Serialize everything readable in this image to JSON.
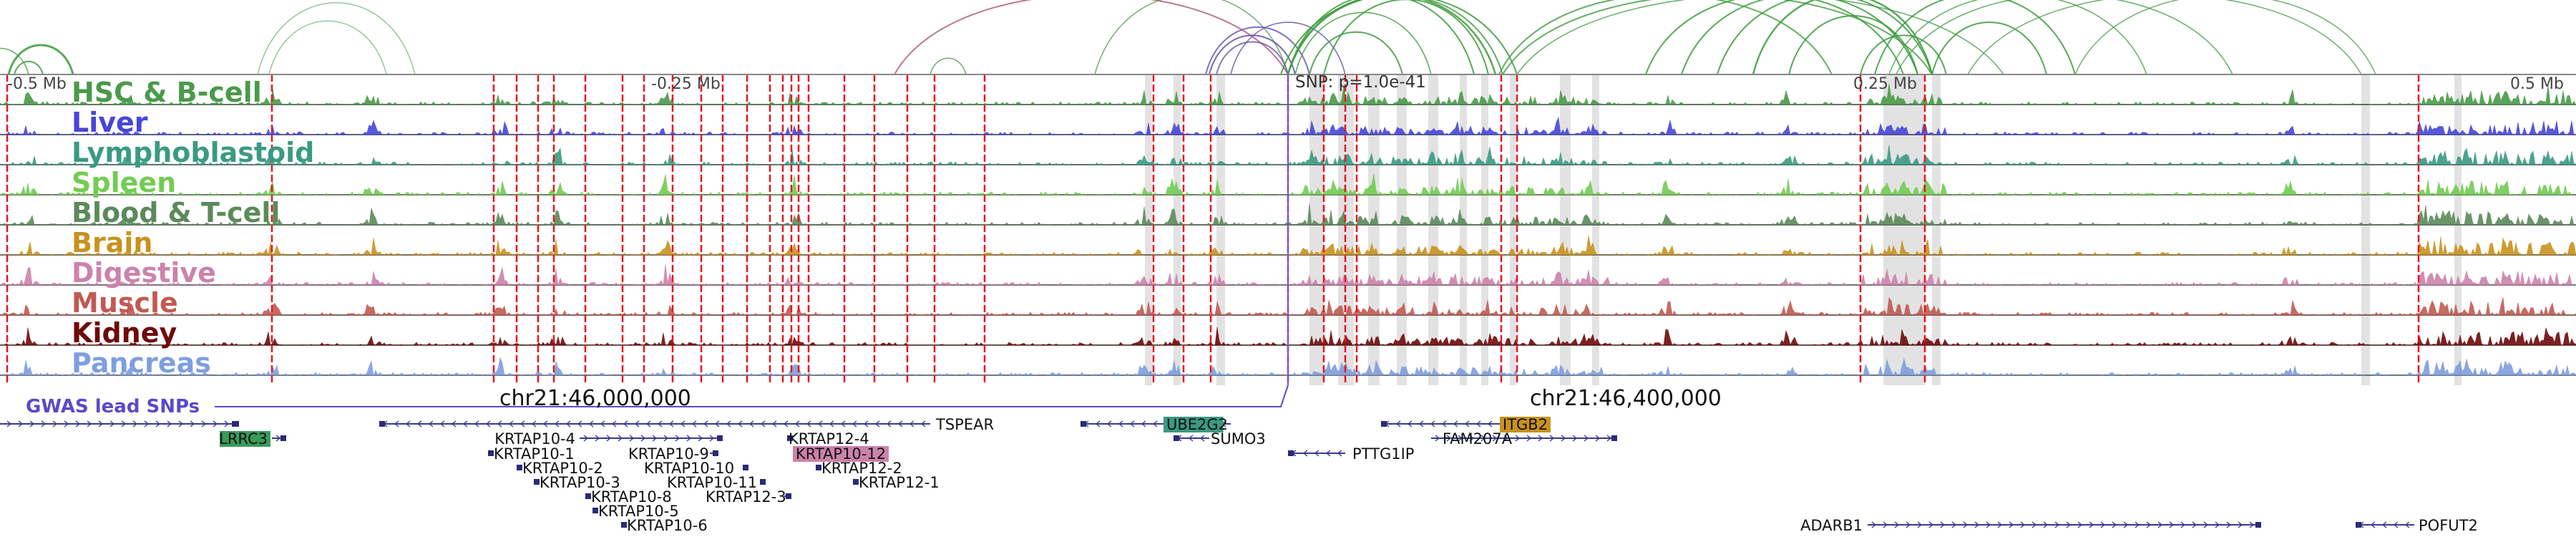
{
  "axis": {
    "ticks": [
      "-0.5 Mb",
      "-0.25 Mb",
      "0.25 Mb",
      "0.5 Mb"
    ],
    "snp_label": "SNP: p=1.0e-41"
  },
  "tracks": [
    {
      "name": "HSC & B-cell",
      "color": "#4a9a4a"
    },
    {
      "name": "Liver",
      "color": "#4646d8"
    },
    {
      "name": "Lymphoblastoid",
      "color": "#3a9a82"
    },
    {
      "name": "Spleen",
      "color": "#72cc52"
    },
    {
      "name": "Blood & T-cell",
      "color": "#5a8a5a"
    },
    {
      "name": "Brain",
      "color": "#c8921e"
    },
    {
      "name": "Digestive",
      "color": "#cc82aa"
    },
    {
      "name": "Muscle",
      "color": "#c05a52"
    },
    {
      "name": "Kidney",
      "color": "#6e0a0a"
    },
    {
      "name": "Pancreas",
      "color": "#7e9ede"
    }
  ],
  "gwas": {
    "label": "GWAS lead SNPs",
    "color": "#5a4ac8"
  },
  "coords": [
    "chr21:46,000,000",
    "chr21:46,400,000"
  ],
  "genes": [
    {
      "name": "TSPEAR",
      "highlight": false
    },
    {
      "name": "LRRC3",
      "highlight": true,
      "hl_color": "#3a9a5a"
    },
    {
      "name": "KRTAP10-4",
      "highlight": false
    },
    {
      "name": "KRTAP10-1",
      "highlight": false
    },
    {
      "name": "KRTAP10-2",
      "highlight": false
    },
    {
      "name": "KRTAP10-3",
      "highlight": false
    },
    {
      "name": "KRTAP10-8",
      "highlight": false
    },
    {
      "name": "KRTAP10-5",
      "highlight": false
    },
    {
      "name": "KRTAP10-6",
      "highlight": false
    },
    {
      "name": "KRTAP10-9",
      "highlight": false
    },
    {
      "name": "KRTAP10-10",
      "highlight": false
    },
    {
      "name": "KRTAP10-11",
      "highlight": false
    },
    {
      "name": "KRTAP12-3",
      "highlight": false
    },
    {
      "name": "KRTAP12-4",
      "highlight": false
    },
    {
      "name": "KRTAP10-12",
      "highlight": true,
      "hl_color": "#cc82aa"
    },
    {
      "name": "KRTAP12-2",
      "highlight": false
    },
    {
      "name": "KRTAP12-1",
      "highlight": false
    },
    {
      "name": "UBE2G2",
      "highlight": true,
      "hl_color": "#3a9a82"
    },
    {
      "name": "SUMO3",
      "highlight": false
    },
    {
      "name": "PTTG1IP",
      "highlight": false
    },
    {
      "name": "ITGB2",
      "highlight": true,
      "hl_color": "#c8921e"
    },
    {
      "name": "FAM207A",
      "highlight": false
    },
    {
      "name": "ADARB1",
      "highlight": false
    },
    {
      "name": "POFUT2",
      "highlight": false
    }
  ]
}
